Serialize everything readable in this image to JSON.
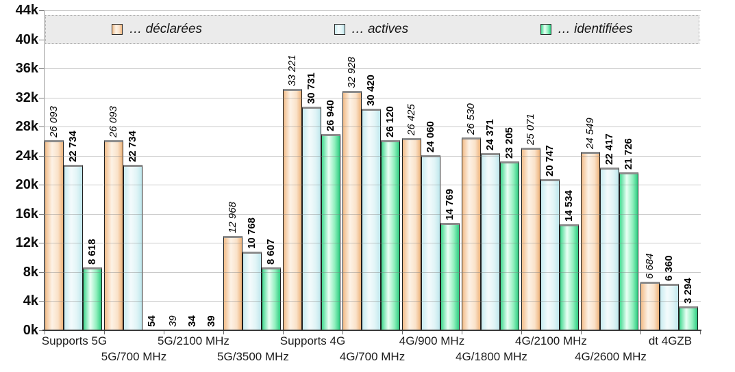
{
  "chart_data": {
    "type": "bar",
    "title": "",
    "xlabel": "",
    "ylabel": "",
    "categories": [
      "Supports 5G",
      "5G/700 MHz",
      "5G/2100 MHz",
      "5G/3500 MHz",
      "Supports 4G",
      "4G/700 MHz",
      "4G/900 MHz",
      "4G/1800 MHz",
      "4G/2100 MHz",
      "4G/2600 MHz",
      "dt 4GZB"
    ],
    "series": [
      {
        "name": "… déclarées",
        "label_style": "italic",
        "colors": {
          "edge": "#f2bd8a",
          "highlight": "#fdf2e6",
          "mid": "#fae2c9",
          "dark": "#eeb47c"
        },
        "values": [
          26093,
          26093,
          39,
          12968,
          33221,
          32928,
          26425,
          26530,
          25071,
          24549,
          6684
        ]
      },
      {
        "name": "… actives",
        "label_style": "bold",
        "colors": {
          "edge": "#c9ecf1",
          "highlight": "#f4fbfc",
          "mid": "#e0f4f6",
          "dark": "#bfe7ed"
        },
        "values": [
          22734,
          22734,
          34,
          10768,
          30731,
          30420,
          24060,
          24371,
          20747,
          22417,
          6360
        ]
      },
      {
        "name": "… identifiées",
        "label_style": "bold",
        "colors": {
          "edge": "#41d98f",
          "highlight": "#eafff5",
          "mid": "#8fefbd",
          "dark": "#2ecd82"
        },
        "values": [
          8618,
          54,
          39,
          8607,
          26940,
          26120,
          14769,
          23205,
          14534,
          21726,
          3294
        ]
      }
    ],
    "ylim": [
      0,
      44000
    ],
    "ytick_step": 4000,
    "yticks": [
      "44k",
      "40k",
      "36k",
      "32k",
      "28k",
      "24k",
      "20k",
      "16k",
      "12k",
      "8k",
      "4k",
      "0k"
    ],
    "grid": true,
    "legend_position": "top-inside",
    "thousands_separator": " "
  }
}
